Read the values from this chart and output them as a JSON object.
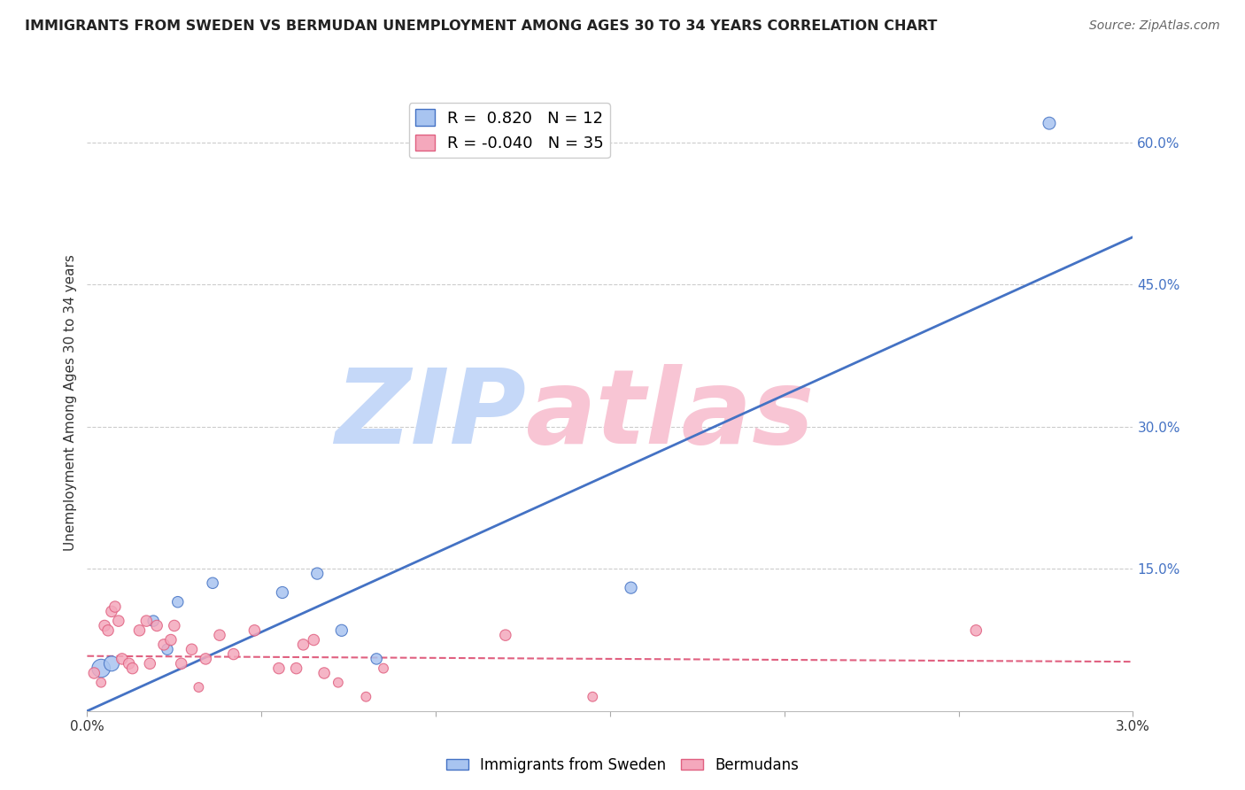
{
  "title": "IMMIGRANTS FROM SWEDEN VS BERMUDAN UNEMPLOYMENT AMONG AGES 30 TO 34 YEARS CORRELATION CHART",
  "source": "Source: ZipAtlas.com",
  "ylabel": "Unemployment Among Ages 30 to 34 years",
  "xlim": [
    0.0,
    3.0
  ],
  "ylim": [
    0.0,
    65.0
  ],
  "yticks": [
    15.0,
    30.0,
    45.0,
    60.0
  ],
  "ytick_labels": [
    "15.0%",
    "30.0%",
    "45.0%",
    "60.0%"
  ],
  "xticks": [
    0.0,
    0.5,
    1.0,
    1.5,
    2.0,
    2.5,
    3.0
  ],
  "xtick_labels": [
    "0.0%",
    "",
    "",
    "",
    "",
    "",
    "3.0%"
  ],
  "legend_blue_r": "0.820",
  "legend_blue_n": "12",
  "legend_pink_r": "-0.040",
  "legend_pink_n": "35",
  "blue_color": "#a8c4f0",
  "pink_color": "#f4a8bc",
  "blue_line_color": "#4472c4",
  "pink_line_color": "#e06080",
  "watermark_color_zip": "#c5d8f8",
  "watermark_color_atlas": "#f8c5d4",
  "blue_scatter_x": [
    0.04,
    0.07,
    0.19,
    0.23,
    0.26,
    0.36,
    0.56,
    0.66,
    0.73,
    0.83,
    1.56,
    2.76
  ],
  "blue_scatter_y": [
    4.5,
    5.0,
    9.5,
    6.5,
    11.5,
    13.5,
    12.5,
    14.5,
    8.5,
    5.5,
    13.0,
    62.0
  ],
  "blue_scatter_sizes": [
    220,
    150,
    80,
    80,
    80,
    80,
    90,
    90,
    90,
    80,
    90,
    100
  ],
  "pink_scatter_x": [
    0.02,
    0.04,
    0.05,
    0.06,
    0.07,
    0.08,
    0.09,
    0.1,
    0.12,
    0.13,
    0.15,
    0.17,
    0.18,
    0.2,
    0.22,
    0.24,
    0.25,
    0.27,
    0.3,
    0.32,
    0.34,
    0.38,
    0.42,
    0.48,
    0.55,
    0.6,
    0.62,
    0.65,
    0.68,
    0.72,
    0.8,
    0.85,
    1.2,
    1.45,
    2.55
  ],
  "pink_scatter_y": [
    4.0,
    3.0,
    9.0,
    8.5,
    10.5,
    11.0,
    9.5,
    5.5,
    5.0,
    4.5,
    8.5,
    9.5,
    5.0,
    9.0,
    7.0,
    7.5,
    9.0,
    5.0,
    6.5,
    2.5,
    5.5,
    8.0,
    6.0,
    8.5,
    4.5,
    4.5,
    7.0,
    7.5,
    4.0,
    3.0,
    1.5,
    4.5,
    8.0,
    1.5,
    8.5
  ],
  "pink_scatter_sizes": [
    80,
    60,
    80,
    80,
    80,
    80,
    80,
    80,
    80,
    80,
    80,
    80,
    80,
    80,
    80,
    80,
    80,
    80,
    80,
    60,
    80,
    80,
    80,
    80,
    80,
    80,
    80,
    80,
    80,
    60,
    60,
    60,
    80,
    60,
    80
  ],
  "blue_line_x": [
    0.0,
    3.0
  ],
  "blue_line_y": [
    0.0,
    50.0
  ],
  "pink_line_x": [
    0.0,
    3.0
  ],
  "pink_line_y": [
    5.8,
    5.2
  ],
  "background_color": "#ffffff",
  "grid_color": "#cccccc",
  "ytick_color": "#4472c4"
}
